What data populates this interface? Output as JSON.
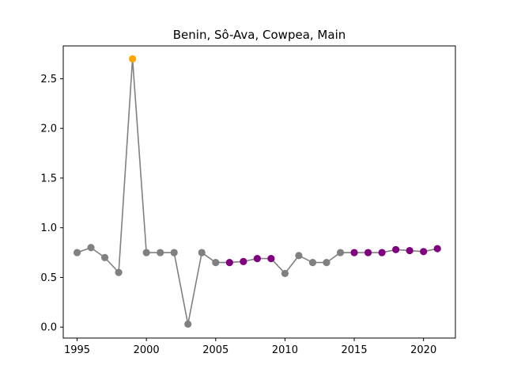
{
  "chart_data": {
    "type": "line",
    "title": "Benin, Sô-Ava, Cowpea, Main",
    "xlabel": "",
    "ylabel": "",
    "xlim": [
      1994,
      2022.3
    ],
    "ylim": [
      -0.11,
      2.83
    ],
    "xticks": [
      1995,
      2000,
      2005,
      2010,
      2015,
      2020
    ],
    "yticks": [
      0.0,
      0.5,
      1.0,
      1.5,
      2.0,
      2.5
    ],
    "ytick_labels": [
      "0.0",
      "0.5",
      "1.0",
      "1.5",
      "2.0",
      "2.5"
    ],
    "grid": false,
    "line_color": "#808080",
    "series": [
      {
        "x": [
          1995,
          1996,
          1997,
          1998,
          1999,
          2000,
          2001,
          2002,
          2003,
          2004,
          2005,
          2006,
          2007,
          2008,
          2009,
          2010,
          2011,
          2012,
          2013,
          2014,
          2015,
          2016,
          2017,
          2018,
          2019,
          2020,
          2021
        ],
        "y": [
          0.75,
          0.8,
          0.7,
          0.55,
          2.7,
          0.75,
          0.75,
          0.75,
          0.03,
          0.75,
          0.65,
          0.65,
          0.66,
          0.69,
          0.69,
          0.54,
          0.72,
          0.65,
          0.65,
          0.75,
          0.75,
          0.75,
          0.75,
          0.78,
          0.77,
          0.76,
          0.79
        ],
        "point_colors": [
          "#808080",
          "#808080",
          "#808080",
          "#808080",
          "#ffa500",
          "#808080",
          "#808080",
          "#808080",
          "#808080",
          "#808080",
          "#808080",
          "#800080",
          "#800080",
          "#800080",
          "#800080",
          "#808080",
          "#808080",
          "#808080",
          "#808080",
          "#808080",
          "#800080",
          "#800080",
          "#800080",
          "#800080",
          "#800080",
          "#800080",
          "#800080"
        ]
      }
    ]
  }
}
